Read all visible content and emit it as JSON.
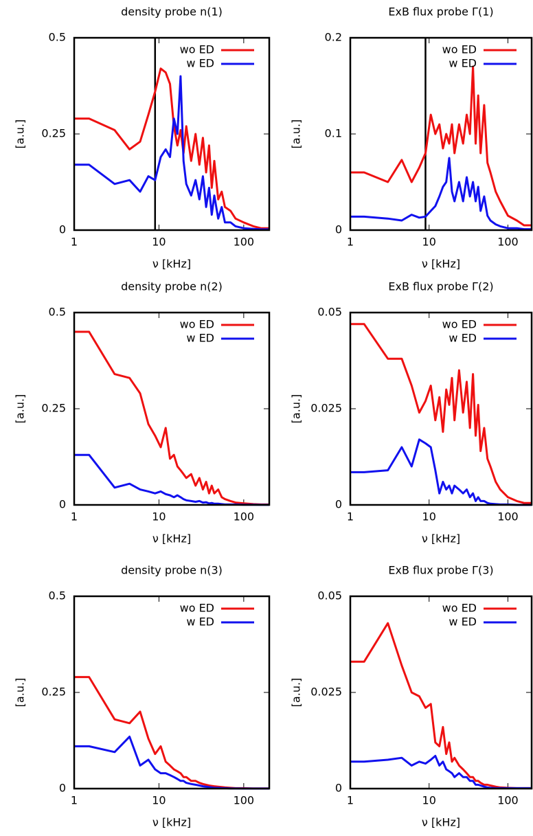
{
  "chart_data": [
    {
      "type": "line",
      "title": "density probe n(1)",
      "xlabel": "ν [kHz]",
      "ylabel": "[a.u.]",
      "xscale": "log",
      "xlim": [
        1,
        200
      ],
      "ylim": [
        0,
        0.5
      ],
      "xticks": [
        1,
        10,
        100
      ],
      "yticks": [
        0,
        0.25,
        0.5
      ],
      "legend": "upper right",
      "vline": 9,
      "x": [
        1,
        1.5,
        3,
        4.5,
        6,
        7.5,
        9,
        10.5,
        12,
        13.5,
        15,
        16.5,
        18,
        19.5,
        21,
        24,
        27,
        30,
        33,
        36,
        39,
        42,
        45,
        50,
        55,
        60,
        70,
        80,
        100,
        130,
        160,
        200
      ],
      "series": [
        {
          "name": "wo ED",
          "color": "#ee1111",
          "values": [
            0.29,
            0.29,
            0.26,
            0.21,
            0.23,
            0.3,
            0.36,
            0.42,
            0.41,
            0.38,
            0.27,
            0.22,
            0.26,
            0.2,
            0.27,
            0.18,
            0.25,
            0.17,
            0.24,
            0.15,
            0.22,
            0.11,
            0.18,
            0.08,
            0.1,
            0.06,
            0.05,
            0.03,
            0.02,
            0.01,
            0.005,
            0.005
          ]
        },
        {
          "name": "w ED",
          "color": "#1111ee",
          "values": [
            0.17,
            0.17,
            0.12,
            0.13,
            0.1,
            0.14,
            0.13,
            0.19,
            0.21,
            0.19,
            0.29,
            0.25,
            0.4,
            0.18,
            0.12,
            0.09,
            0.13,
            0.08,
            0.14,
            0.06,
            0.11,
            0.04,
            0.09,
            0.03,
            0.06,
            0.02,
            0.02,
            0.01,
            0.005,
            0.003,
            0.002,
            0.002
          ]
        }
      ]
    },
    {
      "type": "line",
      "title": "ExB flux probe Γ(1)",
      "xlabel": "ν [kHz]",
      "ylabel": "[a.u.]",
      "xscale": "log",
      "xlim": [
        1,
        200
      ],
      "ylim": [
        0,
        0.2
      ],
      "xticks": [
        1,
        10,
        100
      ],
      "yticks": [
        0,
        0.1,
        0.2
      ],
      "legend": "upper right",
      "vline": 9,
      "x": [
        1,
        1.5,
        3,
        4.5,
        6,
        7.5,
        9,
        10.5,
        12,
        13.5,
        15,
        16.5,
        18,
        19.5,
        21,
        24,
        27,
        30,
        33,
        36,
        39,
        42,
        45,
        50,
        55,
        60,
        70,
        80,
        100,
        130,
        160,
        200
      ],
      "series": [
        {
          "name": "wo ED",
          "color": "#ee1111",
          "values": [
            0.06,
            0.06,
            0.05,
            0.073,
            0.05,
            0.065,
            0.08,
            0.12,
            0.1,
            0.11,
            0.085,
            0.1,
            0.09,
            0.11,
            0.08,
            0.11,
            0.09,
            0.12,
            0.1,
            0.17,
            0.09,
            0.14,
            0.08,
            0.13,
            0.07,
            0.06,
            0.04,
            0.03,
            0.015,
            0.01,
            0.005,
            0.005
          ]
        },
        {
          "name": "w ED",
          "color": "#1111ee",
          "values": [
            0.014,
            0.014,
            0.012,
            0.01,
            0.016,
            0.013,
            0.014,
            0.02,
            0.025,
            0.035,
            0.045,
            0.05,
            0.075,
            0.04,
            0.03,
            0.05,
            0.03,
            0.055,
            0.035,
            0.05,
            0.03,
            0.045,
            0.02,
            0.035,
            0.015,
            0.01,
            0.006,
            0.004,
            0.002,
            0.002,
            0.001,
            0.001
          ]
        }
      ]
    },
    {
      "type": "line",
      "title": "density probe n(2)",
      "xlabel": "ν [kHz]",
      "ylabel": "[a.u.]",
      "xscale": "log",
      "xlim": [
        1,
        200
      ],
      "ylim": [
        0,
        0.5
      ],
      "xticks": [
        1,
        10,
        100
      ],
      "yticks": [
        0,
        0.25,
        0.5
      ],
      "legend": "upper right",
      "x": [
        1,
        1.5,
        3,
        4.5,
        6,
        7.5,
        9,
        10.5,
        12,
        13.5,
        15,
        16.5,
        18,
        19.5,
        21,
        24,
        27,
        30,
        33,
        36,
        39,
        42,
        45,
        50,
        55,
        60,
        70,
        80,
        100,
        130,
        160,
        200
      ],
      "series": [
        {
          "name": "wo ED",
          "color": "#ee1111",
          "values": [
            0.45,
            0.45,
            0.34,
            0.33,
            0.29,
            0.21,
            0.18,
            0.15,
            0.2,
            0.12,
            0.13,
            0.1,
            0.09,
            0.08,
            0.07,
            0.08,
            0.05,
            0.07,
            0.04,
            0.06,
            0.03,
            0.05,
            0.03,
            0.04,
            0.02,
            0.015,
            0.01,
            0.006,
            0.004,
            0.002,
            0.001,
            0.001
          ]
        },
        {
          "name": "w ED",
          "color": "#1111ee",
          "values": [
            0.13,
            0.13,
            0.045,
            0.055,
            0.04,
            0.035,
            0.03,
            0.035,
            0.028,
            0.025,
            0.02,
            0.025,
            0.02,
            0.015,
            0.012,
            0.01,
            0.008,
            0.01,
            0.006,
            0.007,
            0.004,
            0.005,
            0.003,
            0.003,
            0.002,
            0.001,
            0.001,
            0.001,
            0.0005,
            0.0003,
            0.0002,
            0.0002
          ]
        }
      ]
    },
    {
      "type": "line",
      "title": "ExB flux probe Γ(2)",
      "xlabel": "ν [kHz]",
      "ylabel": "[a.u.]",
      "xscale": "log",
      "xlim": [
        1,
        200
      ],
      "ylim": [
        0,
        0.05
      ],
      "xticks": [
        1,
        10,
        100
      ],
      "yticks": [
        0,
        0.025,
        0.05
      ],
      "legend": "upper right",
      "x": [
        1,
        1.5,
        3,
        4.5,
        6,
        7.5,
        9,
        10.5,
        12,
        13.5,
        15,
        16.5,
        18,
        19.5,
        21,
        24,
        27,
        30,
        33,
        36,
        39,
        42,
        45,
        50,
        55,
        60,
        70,
        80,
        100,
        130,
        160,
        200
      ],
      "series": [
        {
          "name": "wo ED",
          "color": "#ee1111",
          "values": [
            0.047,
            0.047,
            0.038,
            0.038,
            0.031,
            0.024,
            0.027,
            0.031,
            0.022,
            0.028,
            0.019,
            0.03,
            0.026,
            0.033,
            0.022,
            0.035,
            0.024,
            0.032,
            0.02,
            0.034,
            0.018,
            0.026,
            0.014,
            0.02,
            0.012,
            0.01,
            0.006,
            0.004,
            0.002,
            0.001,
            0.0005,
            0.0005
          ]
        },
        {
          "name": "w ED",
          "color": "#1111ee",
          "values": [
            0.0085,
            0.0085,
            0.009,
            0.015,
            0.01,
            0.017,
            0.016,
            0.015,
            0.009,
            0.003,
            0.006,
            0.004,
            0.005,
            0.003,
            0.005,
            0.004,
            0.003,
            0.004,
            0.002,
            0.003,
            0.001,
            0.002,
            0.001,
            0.001,
            0.0005,
            0.0003,
            0.0002,
            0.0001,
            0.0001,
            0,
            0,
            0
          ]
        }
      ]
    },
    {
      "type": "line",
      "title": "density probe n(3)",
      "xlabel": "ν [kHz]",
      "ylabel": "[a.u.]",
      "xscale": "log",
      "xlim": [
        1,
        200
      ],
      "ylim": [
        0,
        0.5
      ],
      "xticks": [
        1,
        10,
        100
      ],
      "yticks": [
        0,
        0.25,
        0.5
      ],
      "legend": "upper right",
      "x": [
        1,
        1.5,
        3,
        4.5,
        6,
        7.5,
        9,
        10.5,
        12,
        13.5,
        15,
        16.5,
        18,
        19.5,
        21,
        24,
        27,
        30,
        33,
        36,
        39,
        42,
        45,
        50,
        55,
        60,
        70,
        80,
        100,
        130,
        160,
        200
      ],
      "series": [
        {
          "name": "wo ED",
          "color": "#ee1111",
          "values": [
            0.29,
            0.29,
            0.18,
            0.17,
            0.2,
            0.13,
            0.09,
            0.11,
            0.07,
            0.06,
            0.05,
            0.045,
            0.04,
            0.03,
            0.03,
            0.02,
            0.02,
            0.015,
            0.012,
            0.01,
            0.008,
            0.007,
            0.006,
            0.005,
            0.004,
            0.003,
            0.002,
            0.001,
            0.001,
            0.0005,
            0.0005,
            0.0005
          ]
        },
        {
          "name": "w ED",
          "color": "#1111ee",
          "values": [
            0.11,
            0.11,
            0.095,
            0.135,
            0.06,
            0.075,
            0.05,
            0.04,
            0.04,
            0.035,
            0.03,
            0.025,
            0.02,
            0.02,
            0.015,
            0.012,
            0.01,
            0.008,
            0.006,
            0.005,
            0.004,
            0.003,
            0.002,
            0.002,
            0.001,
            0.001,
            0.0005,
            0.0003,
            0.0002,
            0.0001,
            0.0001,
            0.0001
          ]
        }
      ]
    },
    {
      "type": "line",
      "title": "ExB flux probe Γ(3)",
      "xlabel": "ν [kHz]",
      "ylabel": "[a.u.]",
      "xscale": "log",
      "xlim": [
        1,
        200
      ],
      "ylim": [
        0,
        0.05
      ],
      "xticks": [
        1,
        10,
        100
      ],
      "yticks": [
        0,
        0.025,
        0.05
      ],
      "legend": "upper right",
      "x": [
        1,
        1.5,
        3,
        4.5,
        6,
        7.5,
        9,
        10.5,
        12,
        13.5,
        15,
        16.5,
        18,
        19.5,
        21,
        24,
        27,
        30,
        33,
        36,
        39,
        42,
        45,
        50,
        55,
        60,
        70,
        80,
        100,
        130,
        160,
        200
      ],
      "series": [
        {
          "name": "wo ED",
          "color": "#ee1111",
          "values": [
            0.033,
            0.033,
            0.043,
            0.032,
            0.025,
            0.024,
            0.021,
            0.022,
            0.012,
            0.011,
            0.016,
            0.009,
            0.012,
            0.007,
            0.008,
            0.006,
            0.005,
            0.004,
            0.003,
            0.003,
            0.002,
            0.002,
            0.0015,
            0.001,
            0.001,
            0.0008,
            0.0005,
            0.0003,
            0.0002,
            0.0001,
            0.0001,
            0.0001
          ]
        },
        {
          "name": "w ED",
          "color": "#1111ee",
          "values": [
            0.007,
            0.007,
            0.0075,
            0.008,
            0.006,
            0.007,
            0.0065,
            0.0075,
            0.0085,
            0.006,
            0.007,
            0.005,
            0.0045,
            0.004,
            0.003,
            0.004,
            0.003,
            0.003,
            0.002,
            0.002,
            0.001,
            0.001,
            0.0008,
            0.0005,
            0.0003,
            0.0002,
            0.0001,
            0.0001,
            0.0001,
            0.0001,
            0.0001,
            0.0001
          ]
        }
      ]
    }
  ]
}
